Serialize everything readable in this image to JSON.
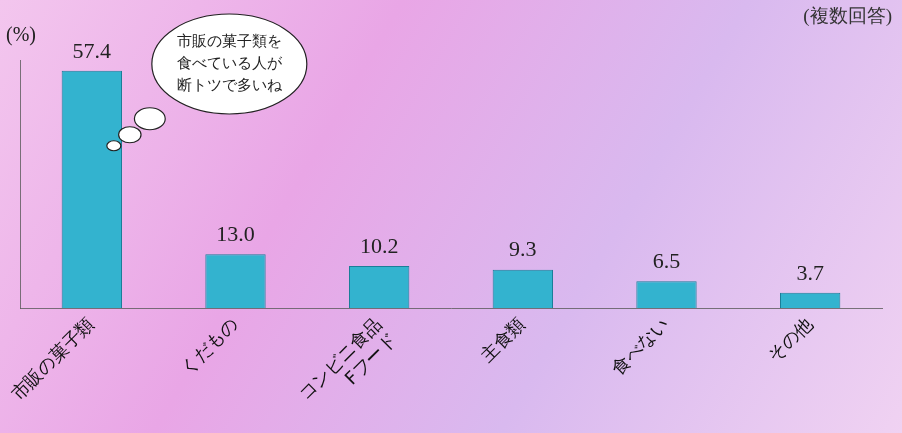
{
  "chart_data": {
    "type": "bar",
    "ylabel": "(%)",
    "categories": [
      "市販の菓子類",
      "くだもの",
      "コンビニ食品\nFフード",
      "主食類",
      "食べない",
      "その他"
    ],
    "values": [
      57.4,
      13.0,
      10.2,
      9.3,
      6.5,
      3.7
    ],
    "value_labels": [
      "57.4",
      "13.0",
      "10.2",
      "9.3",
      "6.5",
      "3.7"
    ],
    "color": "#33b3cf",
    "ylim": [
      0,
      60
    ],
    "grid": false,
    "data_labels": true,
    "tick_labels": "x",
    "annotations": [
      "(複数回答)",
      "市販の菓子類を\n食べている人が\n断トツで多いね"
    ]
  }
}
